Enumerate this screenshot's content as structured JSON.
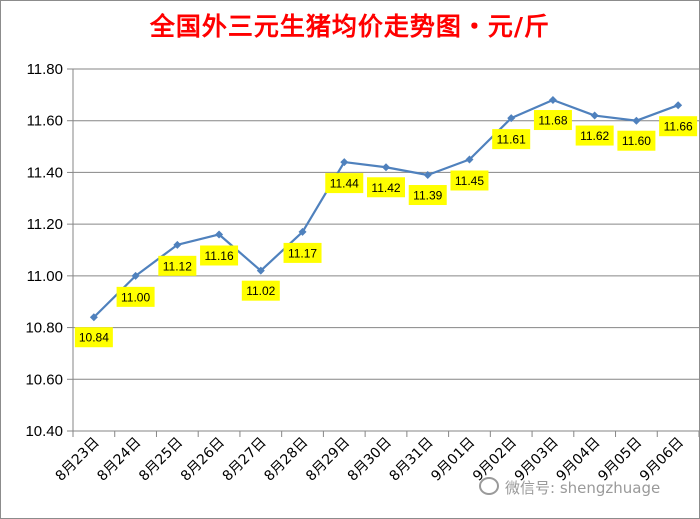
{
  "chart_data": {
    "type": "line",
    "title": "全国外三元生猪均价走势图・元/斤",
    "categories": [
      "8月23日",
      "8月24日",
      "8月25日",
      "8月26日",
      "8月27日",
      "8月28日",
      "8月29日",
      "8月30日",
      "8月31日",
      "9月01日",
      "9月02日",
      "9月03日",
      "9月04日",
      "9月05日",
      "9月06日"
    ],
    "series": [
      {
        "values": [
          10.84,
          11.0,
          11.12,
          11.16,
          11.02,
          11.17,
          11.44,
          11.42,
          11.39,
          11.45,
          11.61,
          11.68,
          11.62,
          11.6,
          11.66
        ]
      }
    ],
    "data_labels": [
      "10.84",
      "11.00",
      "11.12",
      "11.16",
      "11.02",
      "11.17",
      "11.44",
      "11.42",
      "11.39",
      "11.45",
      "11.61",
      "11.68",
      "11.62",
      "11.60",
      "11.66"
    ],
    "yticks": [
      "10.40",
      "10.60",
      "10.80",
      "11.00",
      "11.20",
      "11.40",
      "11.60",
      "11.80"
    ],
    "ylim": [
      10.4,
      11.8
    ],
    "xlabel": "",
    "ylabel": "",
    "grid": "horizontal",
    "legend": "none",
    "colors": {
      "line": "#4f81bd",
      "label_bg": "#ffff00",
      "title": "#ff0000"
    }
  },
  "watermark": {
    "text": "微信号: shengzhuage",
    "icon": "wechat-icon"
  }
}
